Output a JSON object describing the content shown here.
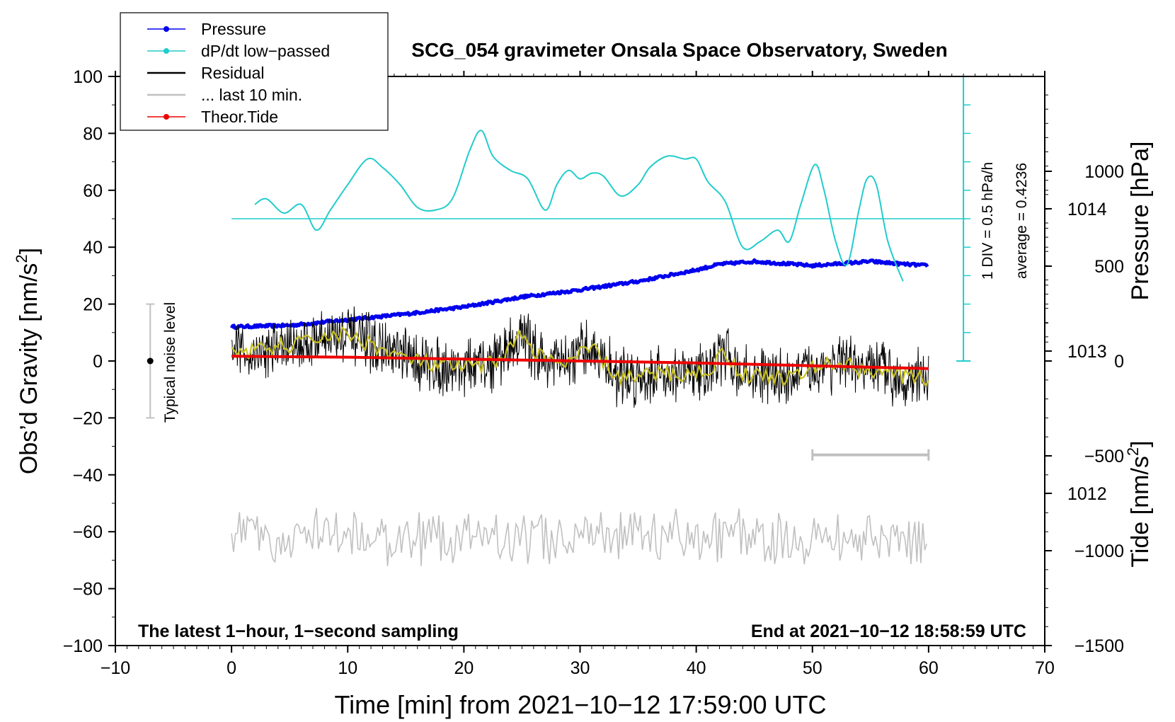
{
  "chart_data": {
    "type": "line",
    "title": "SCG_054 gravimeter Onsala Space Observatory, Sweden",
    "xlabel": "Time [min] from 2021−10−12 17:59:00 UTC",
    "ylabel_left": "Obs’d Gravity [nm/s",
    "ylabel_left_sup": "2",
    "ylabel_left_close": "]",
    "ylabel_pressure": "Pressure [hPa]",
    "ylabel_tide": "Tide [nm/s",
    "ylabel_tide_sup": "2",
    "ylabel_tide_close": "]",
    "footer_left": "The latest 1−hour, 1−second sampling",
    "footer_right": "End at 2021−10−12 18:58:59 UTC",
    "xlim": [
      -10,
      70
    ],
    "ylim": [
      -100,
      100
    ],
    "pressure_lim": [
      1010.93,
      1014.93
    ],
    "tide_lim": [
      -1500,
      1500
    ],
    "x_ticks": [
      "−10",
      "0",
      "10",
      "20",
      "30",
      "40",
      "50",
      "60",
      "70"
    ],
    "x_tick_values": [
      -10,
      0,
      10,
      20,
      30,
      40,
      50,
      60,
      70
    ],
    "y_ticks": [
      "100",
      "80",
      "60",
      "40",
      "20",
      "0",
      "−20",
      "−40",
      "−60",
      "−80",
      "−100"
    ],
    "y_tick_values": [
      100,
      80,
      60,
      40,
      20,
      0,
      -20,
      -40,
      -60,
      -80,
      -100
    ],
    "pressure_ticks": [
      "1014",
      "1013",
      "1012"
    ],
    "pressure_tick_values": [
      1014,
      1013,
      1012
    ],
    "tide_ticks": [
      "1000",
      "500",
      "0",
      "−500",
      "−1000",
      "−1500"
    ],
    "tide_tick_values": [
      1000,
      500,
      0,
      -500,
      -1000,
      -1500
    ],
    "legend": [
      {
        "label": "Pressure",
        "color": "#0000ee",
        "marker": true
      },
      {
        "label": "dP/dt low−passed",
        "color": "#22cccc",
        "marker": true
      },
      {
        "label": "Residual",
        "color": "#000000",
        "marker": false
      },
      {
        "label": "... last 10 min.",
        "color": "#c0c0c0",
        "marker": false
      },
      {
        "label": "Theor.Tide",
        "color": "#ee0000",
        "marker": true
      }
    ],
    "dpdt_scale_label": "1 DIV = 0.5 hPa/h",
    "dpdt_average_label": "average = 0.4236",
    "dpdt_baseline_gravity": 50,
    "noise_label": "Typical noise level",
    "noise_bar": {
      "x": -7,
      "center": 0,
      "half_range": 20
    },
    "last10_bar": {
      "x_start": 50,
      "x_end": 60,
      "y_gravity": -33
    },
    "series": [
      {
        "name": "Pressure",
        "color": "#0000ee",
        "axis": "pressure",
        "x": [
          0,
          5,
          10,
          15,
          20,
          25,
          30,
          35,
          40,
          42,
          45,
          50,
          55,
          58,
          60
        ],
        "y": [
          1013.17,
          1013.18,
          1013.22,
          1013.26,
          1013.31,
          1013.38,
          1013.43,
          1013.49,
          1013.57,
          1013.61,
          1013.63,
          1013.6,
          1013.63,
          1013.61,
          1013.6
        ]
      },
      {
        "name": "dP/dt low-passed",
        "color": "#22cccc",
        "axis": "gravity",
        "x": [
          2,
          3,
          4.5,
          6,
          7.3,
          8.5,
          10,
          11.7,
          13,
          14.5,
          16,
          17.5,
          19,
          20.5,
          21.5,
          22.5,
          24,
          25.5,
          27,
          28,
          29,
          30,
          31,
          32,
          33.5,
          35,
          36,
          37.5,
          39,
          40,
          41,
          42.5,
          44,
          45.5,
          47,
          48,
          49,
          50.2,
          51,
          52,
          53,
          54,
          54.7,
          55.5,
          56.5,
          57.8
        ],
        "y": [
          55,
          57,
          52,
          55,
          46,
          53,
          62,
          71,
          68,
          62,
          54,
          53,
          57,
          74,
          81,
          72,
          67,
          64,
          53,
          62,
          67,
          64,
          66,
          65,
          58,
          62,
          68,
          72,
          71,
          71,
          63,
          56,
          40,
          42,
          46,
          42,
          55,
          69,
          60,
          42,
          34,
          53,
          64,
          62,
          42,
          28
        ]
      },
      {
        "name": "Residual",
        "color": "#000000",
        "axis": "gravity",
        "x": [
          0,
          2,
          4,
          6,
          8,
          10,
          12,
          14,
          16,
          18,
          20,
          22,
          24,
          25,
          27,
          29,
          31,
          33,
          35,
          37,
          39,
          41,
          42.5,
          44,
          46,
          48,
          50,
          52,
          54,
          56,
          58,
          60
        ],
        "y": [
          5,
          3,
          5,
          6,
          9,
          9,
          6,
          2,
          0,
          -2,
          -2,
          -2,
          5,
          9,
          0,
          -1,
          5,
          -5,
          -6,
          -4,
          -5,
          -3,
          3,
          -5,
          -5,
          -6,
          -3,
          0,
          -3,
          -3,
          -6,
          -6
        ]
      },
      {
        "name": "Theor.Tide",
        "color": "#ee0000",
        "axis": "tide",
        "x": [
          0,
          10,
          20,
          30,
          40,
          50,
          60
        ],
        "y": [
          25,
          20,
          10,
          0,
          -10,
          -25,
          -40
        ]
      },
      {
        "name": "... last 10 min.",
        "color": "#c0c0c0",
        "axis": "gravity",
        "x": [
          0,
          60
        ],
        "y": [
          -62,
          -62
        ]
      }
    ]
  }
}
